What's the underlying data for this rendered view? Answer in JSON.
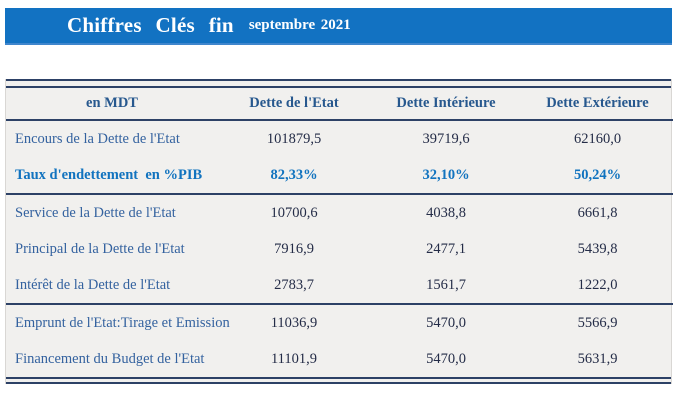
{
  "banner": {
    "title": "Chiffres Clés fin",
    "period": "septembre 2021"
  },
  "table": {
    "columns": [
      "en MDT",
      "Dette de l'Etat",
      "Dette Intérieure",
      "Dette Extérieure"
    ],
    "rows": [
      {
        "label": "Encours de la Dette de l'Etat",
        "values": [
          "101879,5",
          "39719,6",
          "62160,0"
        ],
        "emphasis": false,
        "rule_below": false
      },
      {
        "label": "Taux d'endettement  en %PIB",
        "values": [
          "82,33%",
          "32,10%",
          "50,24%"
        ],
        "emphasis": true,
        "rule_below": true
      },
      {
        "label": "Service de la Dette de l'Etat",
        "values": [
          "10700,6",
          "4038,8",
          "6661,8"
        ],
        "emphasis": false,
        "rule_below": false
      },
      {
        "label": "Principal de la Dette de l'Etat",
        "values": [
          "7916,9",
          "2477,1",
          "5439,8"
        ],
        "emphasis": false,
        "rule_below": false
      },
      {
        "label": "Intérêt de la Dette de l'Etat",
        "values": [
          "2783,7",
          "1561,7",
          "1222,0"
        ],
        "emphasis": false,
        "rule_below": true
      },
      {
        "label": "Emprunt de l'Etat:Tirage et Emission",
        "values": [
          "11036,9",
          "5470,0",
          "5566,9"
        ],
        "emphasis": false,
        "rule_below": false
      },
      {
        "label": "Financement du Budget de l'Etat",
        "values": [
          "11101,9",
          "5470,0",
          "5631,9"
        ],
        "emphasis": false,
        "rule_below": false
      }
    ]
  },
  "colors": {
    "banner_blue": "#1272c2",
    "rule_navy": "#2d4166",
    "table_background": "#f1f0ee",
    "label_blue": "#34629f",
    "header_blue": "#27588e",
    "value_dark": "#242c47",
    "accent_blue": "#1173bf"
  }
}
